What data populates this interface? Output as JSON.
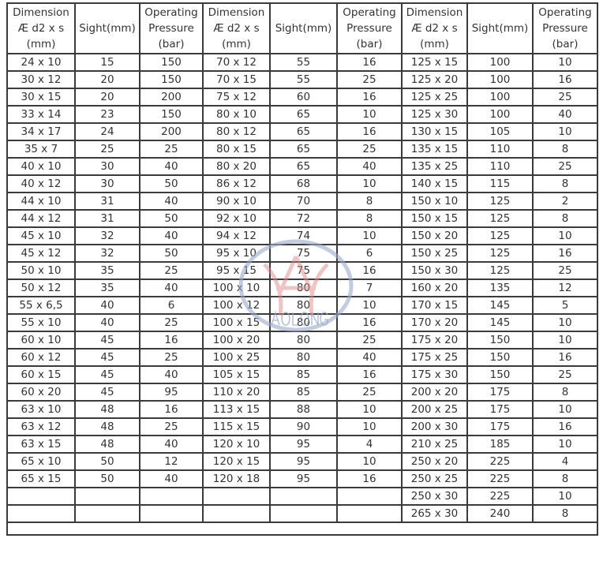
{
  "headers": [
    "Dimension\nÆ d2 x s\n(mm)",
    "Sight(mm)",
    "Operating\nPressure\n(bar)",
    "Dimension\nÆ d2 x s\n(mm)",
    "Sight(mm)",
    "Operating\nPressure\n(bar)",
    "Dimension\nÆ d2 x s\n(mm)",
    "Sight(mm)",
    "Operating\nPressure\n(bar)"
  ],
  "rows": [
    [
      "24 x 10",
      "15",
      "150",
      "70 x 12",
      "55",
      "16",
      "125 x 15",
      "100",
      "10"
    ],
    [
      "30 x 12",
      "20",
      "150",
      "70 x 15",
      "55",
      "25",
      "125 x 20",
      "100",
      "16"
    ],
    [
      "30 x 15",
      "20",
      "200",
      "75 x 12",
      "60",
      "16",
      "125 x 25",
      "100",
      "25"
    ],
    [
      "33 x 14",
      "23",
      "150",
      "80 x 10",
      "65",
      "10",
      "125 x 30",
      "100",
      "40"
    ],
    [
      "34 x 17",
      "24",
      "200",
      "80 x 12",
      "65",
      "16",
      "130 x 15",
      "105",
      "10"
    ],
    [
      "35 x 7",
      "25",
      "25",
      "80 x 15",
      "65",
      "25",
      "135 x 15",
      "110",
      "8"
    ],
    [
      "40 x 10",
      "30",
      "40",
      "80 x 20",
      "65",
      "40",
      "135 x 25",
      "110",
      "25"
    ],
    [
      "40 x 12",
      "30",
      "50",
      "86 x 12",
      "68",
      "10",
      "140 x 15",
      "115",
      "8"
    ],
    [
      "44 x 10",
      "31",
      "40",
      "90 x 10",
      "70",
      "8",
      "150 x 10",
      "125",
      "2"
    ],
    [
      "44 x 12",
      "31",
      "50",
      "92 x 10",
      "72",
      "8",
      "150 x 15",
      "125",
      "8"
    ],
    [
      "45 x 10",
      "32",
      "40",
      "94 x 12",
      "74",
      "10",
      "150 x 20",
      "125",
      "10"
    ],
    [
      "45 x 12",
      "32",
      "50",
      "95 x 10",
      "75",
      "6",
      "150 x 25",
      "125",
      "16"
    ],
    [
      "50 x 10",
      "35",
      "25",
      "95 x 15",
      "75",
      "16",
      "150 x 30",
      "125",
      "25"
    ],
    [
      "50 x 12",
      "35",
      "40",
      "100 x 10",
      "80",
      "7",
      "160 x 20",
      "135",
      "12"
    ],
    [
      "55 x 6,5",
      "40",
      "6",
      "100 x 12",
      "80",
      "10",
      "170 x 15",
      "145",
      "5"
    ],
    [
      "55 x 10",
      "40",
      "25",
      "100 x 15",
      "80",
      "16",
      "170 x 20",
      "145",
      "10"
    ],
    [
      "60 x 10",
      "45",
      "16",
      "100 x 20",
      "80",
      "25",
      "175 x 20",
      "150",
      "10"
    ],
    [
      "60 x 12",
      "45",
      "25",
      "100 x 25",
      "80",
      "40",
      "175 x 25",
      "150",
      "16"
    ],
    [
      "60 x 15",
      "45",
      "40",
      "105 x 15",
      "85",
      "16",
      "175 x 30",
      "150",
      "25"
    ],
    [
      "60 x 20",
      "45",
      "95",
      "110 x 20",
      "85",
      "25",
      "200 x 20",
      "175",
      "8"
    ],
    [
      "63 x 10",
      "48",
      "16",
      "113 x 15",
      "88",
      "10",
      "200 x 25",
      "175",
      "10"
    ],
    [
      "63 x 12",
      "48",
      "25",
      "115 x 15",
      "90",
      "10",
      "200 x 30",
      "175",
      "16"
    ],
    [
      "63 x 15",
      "48",
      "40",
      "120 x 10",
      "95",
      "4",
      "210 x 25",
      "185",
      "10"
    ],
    [
      "65 x 10",
      "50",
      "12",
      "120 x 15",
      "95",
      "10",
      "250 x 20",
      "225",
      "4"
    ],
    [
      "65 x 15",
      "50",
      "40",
      "120 x 18",
      "95",
      "16",
      "250 x 25",
      "225",
      "8"
    ],
    [
      "",
      "",
      "",
      "",
      "",
      "",
      "250 x 30",
      "225",
      "10"
    ],
    [
      "",
      "",
      "",
      "",
      "",
      "",
      "265 x 30",
      "240",
      "8"
    ]
  ],
  "watermark": {
    "text": "AOLONG",
    "ring_color": "#9aa8cc",
    "mark_color": "#e08a8a"
  }
}
